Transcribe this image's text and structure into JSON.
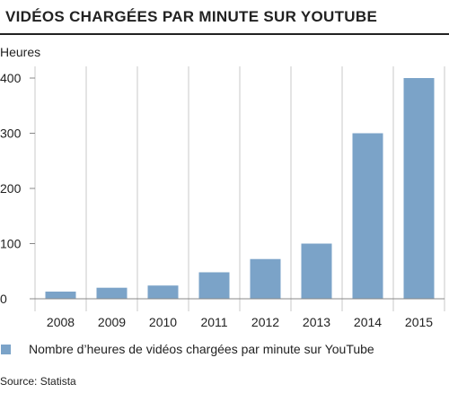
{
  "title": "VIDÉOS CHARGÉES PAR MINUTE SUR YOUTUBE",
  "source": "Source: Statista",
  "chart_data": {
    "type": "bar",
    "title": "VIDÉOS CHARGÉES PAR MINUTE SUR YOUTUBE",
    "ylabel": "Heures",
    "xlabel": "",
    "categories": [
      "2008",
      "2009",
      "2010",
      "2011",
      "2012",
      "2013",
      "2014",
      "2015"
    ],
    "series": [
      {
        "name": "Nombre d’heures de vidéos chargées par minute sur YouTube",
        "values": [
          13,
          20,
          24,
          48,
          72,
          100,
          300,
          400
        ],
        "color": "#7ba3c8"
      }
    ],
    "ylim": [
      0,
      400
    ],
    "yticks": [
      0,
      100,
      200,
      300,
      400
    ],
    "grid": "vertical",
    "legend_position": "bottom"
  }
}
